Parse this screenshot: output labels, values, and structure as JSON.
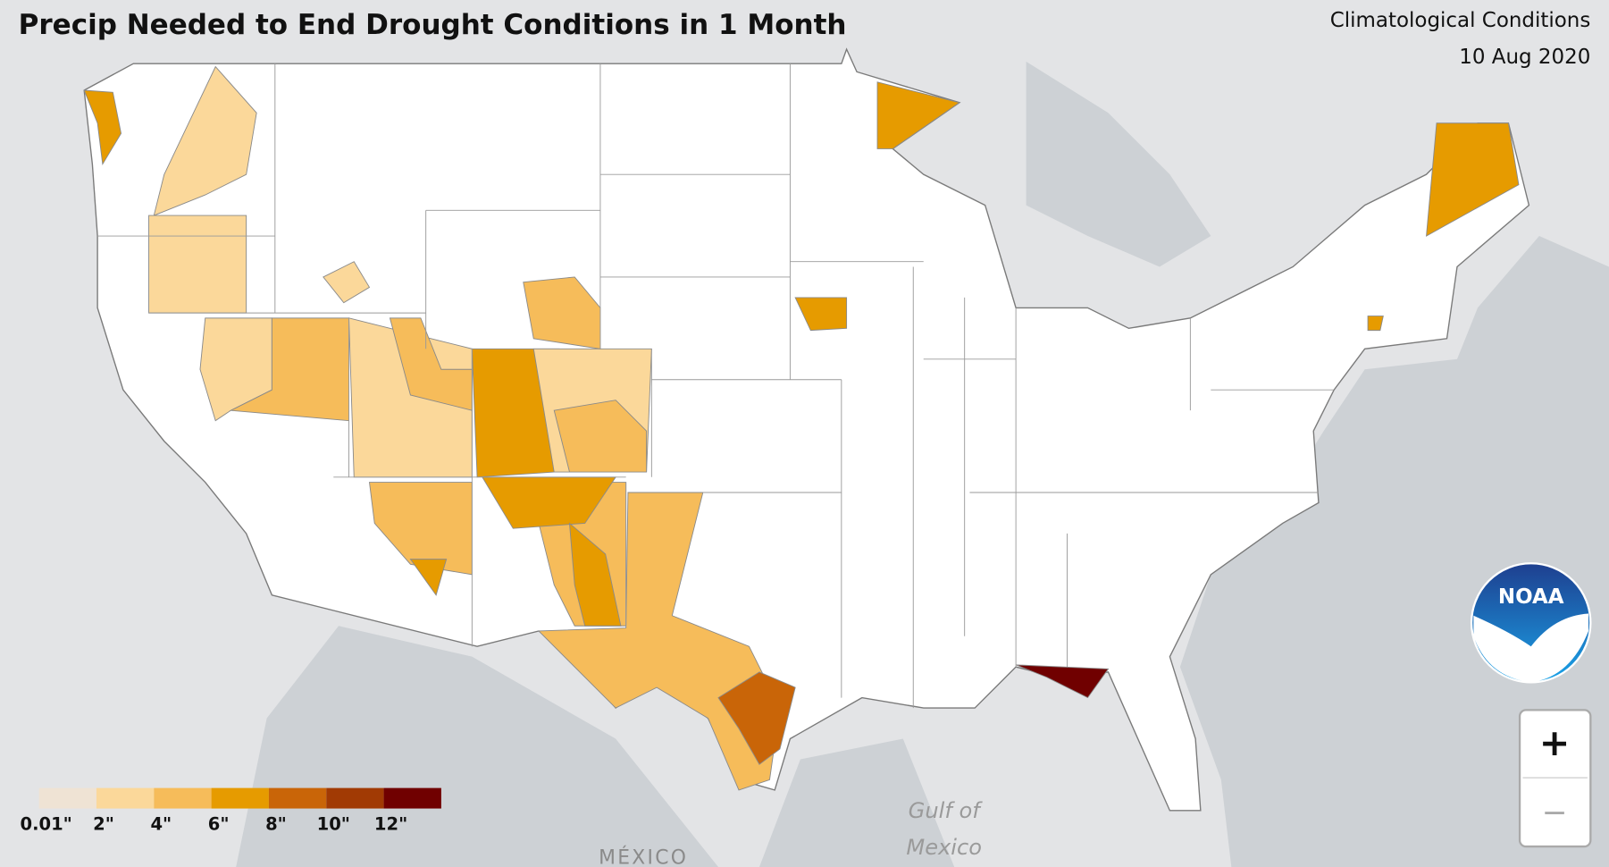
{
  "header": {
    "title": "Precip Needed to End Drought Conditions in 1 Month",
    "subtitle": [
      "Climatological Conditions",
      "10 Aug 2020"
    ]
  },
  "legend": {
    "items": [
      {
        "label": "0.01\"",
        "color": "#efe3d4"
      },
      {
        "label": "2\"",
        "color": "#fbd89a"
      },
      {
        "label": "4\"",
        "color": "#f6bc5a"
      },
      {
        "label": "6\"",
        "color": "#e69b00"
      },
      {
        "label": "8\"",
        "color": "#c96508"
      },
      {
        "label": "10\"",
        "color": "#a13a04"
      },
      {
        "label": "12\"",
        "color": "#700000"
      }
    ]
  },
  "map_labels": {
    "gulf": [
      "Gulf of",
      "Mexico"
    ],
    "country": "MÉXICO"
  },
  "logo": {
    "text": "NOAA"
  },
  "zoom_controls": {
    "zoom_in": "+",
    "zoom_out": "−"
  }
}
